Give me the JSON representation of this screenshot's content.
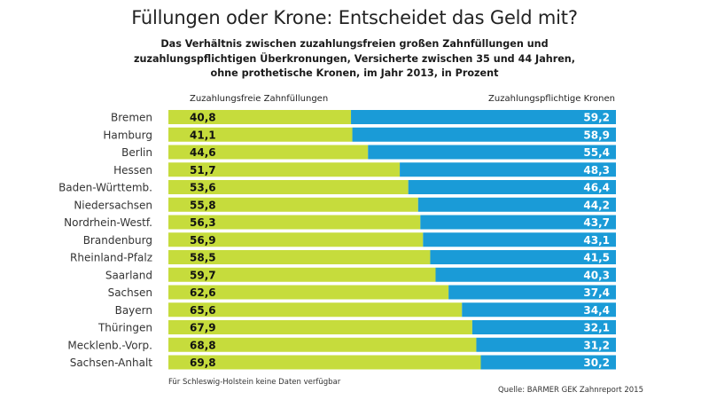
{
  "chart_data": {
    "type": "bar",
    "orientation": "horizontal",
    "stacked": true,
    "title": "Füllungen oder Krone: Entscheidet das Geld mit?",
    "subtitle_lines": [
      "Das Verhältnis zwischen zuzahlungsfreien großen Zahnfüllungen und",
      "zuzahlungspflichtigen Überkronungen, Versicherte zwischen 35 und 44 Jahren,",
      "ohne prothetische Kronen, im Jahr 2013, in Prozent"
    ],
    "categories": [
      "Bremen",
      "Hamburg",
      "Berlin",
      "Hessen",
      "Baden-Württemb.",
      "Niedersachsen",
      "Nordrhein-Westf.",
      "Brandenburg",
      "Rheinland-Pfalz",
      "Saarland",
      "Sachsen",
      "Bayern",
      "Thüringen",
      "Mecklenb.-Vorp.",
      "Sachsen-Anhalt"
    ],
    "series": [
      {
        "name": "Zuzahlungsfreie Zahnfüllungen",
        "color": "#c6dc3c",
        "values": [
          40.8,
          41.1,
          44.6,
          51.7,
          53.6,
          55.8,
          56.3,
          56.9,
          58.5,
          59.7,
          62.6,
          65.6,
          67.9,
          68.8,
          69.8
        ],
        "labels": [
          "40,8",
          "41,1",
          "44,6",
          "51,7",
          "53,6",
          "55,8",
          "56,3",
          "56,9",
          "58,5",
          "59,7",
          "62,6",
          "65,6",
          "67,9",
          "68,8",
          "69,8"
        ]
      },
      {
        "name": "Zuzahlungspflichtige Kronen",
        "color": "#1a9bd7",
        "values": [
          59.2,
          58.9,
          55.4,
          48.3,
          46.4,
          44.2,
          43.7,
          43.1,
          41.5,
          40.3,
          37.4,
          34.4,
          32.1,
          31.2,
          30.2
        ],
        "labels": [
          "59,2",
          "58,9",
          "55,4",
          "48,3",
          "46,4",
          "44,2",
          "43,7",
          "43,1",
          "41,5",
          "40,3",
          "37,4",
          "34,4",
          "32,1",
          "31,2",
          "30,2"
        ]
      }
    ],
    "xlim": [
      0,
      100
    ],
    "grid": false,
    "legend_placement": "top",
    "footnote": "Für Schleswig-Holstein keine Daten verfügbar",
    "source": "Quelle: BARMER GEK Zahnreport 2015"
  }
}
